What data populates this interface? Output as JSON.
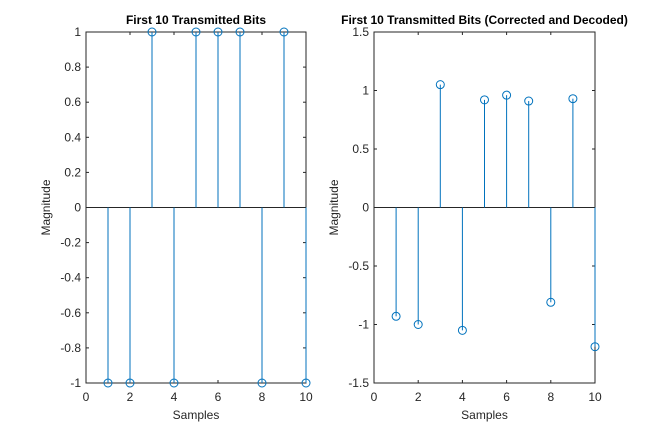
{
  "chart_data": [
    {
      "type": "stem",
      "title": "First 10 Transmitted Bits",
      "xlabel": "Samples",
      "ylabel": "Magnitude",
      "xlim": [
        0,
        10
      ],
      "ylim": [
        -1,
        1
      ],
      "xticks": [
        "0",
        "2",
        "4",
        "6",
        "8",
        "10"
      ],
      "yticks": [
        "-1",
        "-0.8",
        "-0.6",
        "-0.4",
        "-0.2",
        "0",
        "0.2",
        "0.4",
        "0.6",
        "0.8",
        "1"
      ],
      "x": [
        1,
        2,
        3,
        4,
        5,
        6,
        7,
        8,
        9,
        10
      ],
      "values": [
        -1,
        -1,
        1,
        -1,
        1,
        1,
        1,
        -1,
        1,
        -1
      ],
      "grid": false,
      "color": "#0072BD"
    },
    {
      "type": "stem",
      "title": "First 10 Transmitted Bits (Corrected and Decoded)",
      "xlabel": "Samples",
      "ylabel": "Magnitude",
      "xlim": [
        0,
        10
      ],
      "ylim": [
        -1.5,
        1.5
      ],
      "xticks": [
        "0",
        "2",
        "4",
        "6",
        "8",
        "10"
      ],
      "yticks": [
        "-1.5",
        "-1",
        "-0.5",
        "0",
        "0.5",
        "1",
        "1.5"
      ],
      "x": [
        1,
        2,
        3,
        4,
        5,
        6,
        7,
        8,
        9,
        10
      ],
      "values": [
        -0.93,
        -1.0,
        1.05,
        -1.05,
        0.92,
        0.96,
        0.91,
        -0.81,
        0.93,
        -1.19
      ],
      "grid": false,
      "color": "#0072BD"
    }
  ]
}
